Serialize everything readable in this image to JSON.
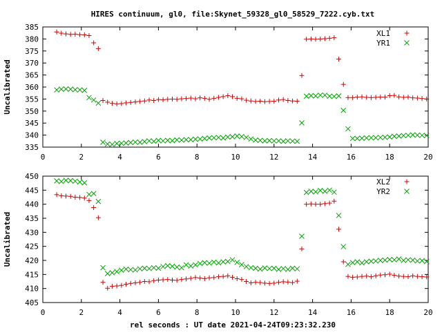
{
  "figure": {
    "title": "HIRES continuum, gl0, file:Skynet_59328_gl0_58529_7222.cyb.txt",
    "xlabel": "rel seconds : UT date 2021-04-24T09:23:32.230"
  },
  "chart_data": [
    {
      "type": "scatter",
      "ylabel": "Uncalibrated",
      "xlim": [
        0,
        20
      ],
      "ylim": [
        335,
        385
      ],
      "xticks": [
        0,
        2,
        4,
        6,
        8,
        10,
        12,
        14,
        16,
        18,
        20
      ],
      "yticks": [
        335,
        340,
        345,
        350,
        355,
        360,
        365,
        370,
        375,
        380,
        385
      ],
      "grid": false,
      "legend_position": "top-right",
      "series": [
        {
          "name": "XL1",
          "marker": "plus",
          "color": "#d00000",
          "x": [
            0.72,
            0.96,
            1.2,
            1.44,
            1.68,
            1.92,
            2.16,
            2.4,
            2.64,
            2.88,
            3.12,
            3.36,
            3.6,
            3.84,
            4.08,
            4.32,
            4.56,
            4.8,
            5.04,
            5.28,
            5.52,
            5.76,
            6.0,
            6.24,
            6.48,
            6.72,
            6.96,
            7.2,
            7.44,
            7.68,
            7.92,
            8.16,
            8.4,
            8.64,
            8.88,
            9.12,
            9.36,
            9.6,
            9.84,
            10.08,
            10.32,
            10.56,
            10.8,
            11.04,
            11.28,
            11.52,
            11.76,
            12.0,
            12.24,
            12.48,
            12.72,
            12.96,
            13.2,
            13.44,
            13.68,
            13.92,
            14.16,
            14.4,
            14.64,
            14.88,
            15.12,
            15.36,
            15.6,
            15.84,
            16.08,
            16.32,
            16.56,
            16.8,
            17.04,
            17.28,
            17.52,
            17.76,
            18.0,
            18.24,
            18.48,
            18.72,
            18.96,
            19.2,
            19.44,
            19.68,
            19.92
          ],
          "y": [
            382.9,
            382.4,
            382.1,
            381.9,
            382.0,
            381.8,
            381.7,
            381.4,
            378.4,
            376.0,
            354.4,
            353.7,
            353.2,
            353.0,
            353.1,
            353.4,
            353.6,
            353.8,
            354.0,
            354.2,
            354.6,
            354.4,
            354.8,
            354.7,
            354.9,
            355.0,
            354.9,
            355.1,
            355.2,
            355.4,
            355.1,
            355.5,
            355.3,
            354.9,
            355.3,
            355.7,
            356.0,
            356.4,
            356.0,
            355.3,
            355.1,
            354.5,
            354.2,
            354.0,
            354.1,
            353.9,
            354.0,
            354.1,
            354.6,
            354.8,
            354.4,
            354.2,
            354.1,
            364.8,
            379.9,
            380.0,
            379.9,
            380.0,
            380.1,
            380.3,
            380.5,
            371.6,
            361.1,
            355.6,
            355.6,
            355.8,
            355.9,
            355.7,
            355.6,
            355.7,
            355.8,
            355.8,
            356.4,
            356.5,
            355.9,
            355.7,
            355.8,
            355.5,
            355.4,
            355.2,
            355.0
          ]
        },
        {
          "name": "YR1",
          "marker": "cross",
          "color": "#00a000",
          "x": [
            0.72,
            0.96,
            1.2,
            1.44,
            1.68,
            1.92,
            2.16,
            2.4,
            2.64,
            2.88,
            3.12,
            3.36,
            3.6,
            3.84,
            4.08,
            4.32,
            4.56,
            4.8,
            5.04,
            5.28,
            5.52,
            5.76,
            6.0,
            6.24,
            6.48,
            6.72,
            6.96,
            7.2,
            7.44,
            7.68,
            7.92,
            8.16,
            8.4,
            8.64,
            8.88,
            9.12,
            9.36,
            9.6,
            9.84,
            10.08,
            10.32,
            10.56,
            10.8,
            11.04,
            11.28,
            11.52,
            11.76,
            12.0,
            12.24,
            12.48,
            12.72,
            12.96,
            13.2,
            13.44,
            13.68,
            13.92,
            14.16,
            14.4,
            14.64,
            14.88,
            15.12,
            15.36,
            15.6,
            15.84,
            16.08,
            16.32,
            16.56,
            16.8,
            17.04,
            17.28,
            17.52,
            17.76,
            18.0,
            18.24,
            18.48,
            18.72,
            18.96,
            19.2,
            19.44,
            19.68,
            19.92
          ],
          "y": [
            358.8,
            359.1,
            359.2,
            359.1,
            358.9,
            358.8,
            358.6,
            355.6,
            354.6,
            353.3,
            337.0,
            336.3,
            336.1,
            336.5,
            336.6,
            336.7,
            336.9,
            337.1,
            337.0,
            337.3,
            337.6,
            337.4,
            337.8,
            337.6,
            337.8,
            337.7,
            338.0,
            337.9,
            338.1,
            338.1,
            338.3,
            338.4,
            338.6,
            338.8,
            338.9,
            339.0,
            338.8,
            339.2,
            339.3,
            339.6,
            339.4,
            339.0,
            338.4,
            337.9,
            337.8,
            337.6,
            337.7,
            337.6,
            337.6,
            337.4,
            337.6,
            337.5,
            337.4,
            345.1,
            356.2,
            356.4,
            356.3,
            356.6,
            356.6,
            356.2,
            356.1,
            356.3,
            350.3,
            342.6,
            338.6,
            338.6,
            338.7,
            338.8,
            338.9,
            338.9,
            339.0,
            339.1,
            339.2,
            339.5,
            339.6,
            339.8,
            339.9,
            340.1,
            340.0,
            339.9,
            339.8
          ]
        }
      ]
    },
    {
      "type": "scatter",
      "ylabel": "Uncalibrated",
      "xlim": [
        0,
        20
      ],
      "ylim": [
        405,
        450
      ],
      "xticks": [
        0,
        2,
        4,
        6,
        8,
        10,
        12,
        14,
        16,
        18,
        20
      ],
      "yticks": [
        405,
        410,
        415,
        420,
        425,
        430,
        435,
        440,
        445,
        450
      ],
      "grid": false,
      "legend_position": "top-right",
      "series": [
        {
          "name": "XL2",
          "marker": "plus",
          "color": "#d00000",
          "x": [
            0.72,
            0.96,
            1.2,
            1.44,
            1.68,
            1.92,
            2.16,
            2.4,
            2.64,
            2.88,
            3.12,
            3.36,
            3.6,
            3.84,
            4.08,
            4.32,
            4.56,
            4.8,
            5.04,
            5.28,
            5.52,
            5.76,
            6.0,
            6.24,
            6.48,
            6.72,
            6.96,
            7.2,
            7.44,
            7.68,
            7.92,
            8.16,
            8.4,
            8.64,
            8.88,
            9.12,
            9.36,
            9.6,
            9.84,
            10.08,
            10.32,
            10.56,
            10.8,
            11.04,
            11.28,
            11.52,
            11.76,
            12.0,
            12.24,
            12.48,
            12.72,
            12.96,
            13.2,
            13.44,
            13.68,
            13.92,
            14.16,
            14.4,
            14.64,
            14.88,
            15.12,
            15.36,
            15.6,
            15.84,
            16.08,
            16.32,
            16.56,
            16.8,
            17.04,
            17.28,
            17.52,
            17.76,
            18.0,
            18.24,
            18.48,
            18.72,
            18.96,
            19.2,
            19.44,
            19.68,
            19.92
          ],
          "y": [
            443.4,
            443.0,
            442.9,
            442.8,
            442.5,
            442.4,
            442.2,
            441.3,
            438.8,
            435.2,
            412.2,
            410.1,
            410.8,
            410.9,
            411.1,
            411.5,
            411.8,
            412.0,
            412.2,
            412.5,
            412.4,
            412.8,
            413.0,
            413.1,
            413.2,
            413.0,
            412.9,
            413.2,
            413.4,
            413.6,
            413.9,
            413.7,
            413.5,
            413.8,
            413.9,
            414.2,
            414.3,
            414.5,
            414.0,
            413.5,
            413.2,
            412.5,
            412.0,
            412.2,
            412.1,
            411.9,
            411.8,
            411.9,
            412.2,
            412.4,
            412.3,
            412.1,
            412.6,
            424.1,
            440.0,
            440.1,
            440.0,
            440.0,
            440.2,
            440.4,
            441.1,
            431.1,
            419.5,
            414.3,
            414.0,
            414.1,
            414.3,
            414.4,
            414.2,
            414.5,
            414.8,
            414.9,
            415.1,
            414.7,
            414.4,
            414.3,
            414.2,
            414.5,
            414.3,
            414.2,
            414.1
          ]
        },
        {
          "name": "YR2",
          "marker": "cross",
          "color": "#00a000",
          "x": [
            0.72,
            0.96,
            1.2,
            1.44,
            1.68,
            1.92,
            2.16,
            2.4,
            2.64,
            2.88,
            3.12,
            3.36,
            3.6,
            3.84,
            4.08,
            4.32,
            4.56,
            4.8,
            5.04,
            5.28,
            5.52,
            5.76,
            6.0,
            6.24,
            6.48,
            6.72,
            6.96,
            7.2,
            7.44,
            7.68,
            7.92,
            8.16,
            8.4,
            8.64,
            8.88,
            9.12,
            9.36,
            9.6,
            9.84,
            10.08,
            10.32,
            10.56,
            10.8,
            11.04,
            11.28,
            11.52,
            11.76,
            12.0,
            12.24,
            12.48,
            12.72,
            12.96,
            13.2,
            13.44,
            13.68,
            13.92,
            14.16,
            14.4,
            14.64,
            14.88,
            15.12,
            15.36,
            15.6,
            15.84,
            16.08,
            16.32,
            16.56,
            16.8,
            17.04,
            17.28,
            17.52,
            17.76,
            18.0,
            18.24,
            18.48,
            18.72,
            18.96,
            19.2,
            19.44,
            19.68,
            19.92
          ],
          "y": [
            448.3,
            448.1,
            448.5,
            448.4,
            448.2,
            447.9,
            447.6,
            443.5,
            443.8,
            441.0,
            417.4,
            415.3,
            415.6,
            416.0,
            416.5,
            416.9,
            416.7,
            416.6,
            417.0,
            417.2,
            417.1,
            417.4,
            417.2,
            417.8,
            418.1,
            417.9,
            417.6,
            417.4,
            418.4,
            418.0,
            418.4,
            418.9,
            419.2,
            419.0,
            419.4,
            419.1,
            419.5,
            419.6,
            420.2,
            419.3,
            418.5,
            417.8,
            417.4,
            417.2,
            416.9,
            417.3,
            417.1,
            417.2,
            416.8,
            417.1,
            416.8,
            417.2,
            417.0,
            428.6,
            444.2,
            444.6,
            444.4,
            444.9,
            444.6,
            445.0,
            444.3,
            436.0,
            424.9,
            418.6,
            419.2,
            419.5,
            419.1,
            419.5,
            419.7,
            419.8,
            420.0,
            420.1,
            420.3,
            420.2,
            420.5,
            420.0,
            420.2,
            420.1,
            419.8,
            419.9,
            419.6
          ]
        }
      ]
    }
  ]
}
